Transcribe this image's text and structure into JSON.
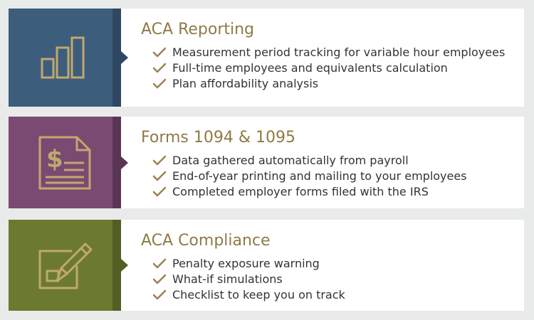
{
  "colors": {
    "background": "#e9eaea",
    "title": "#8f7a45",
    "check": "#9a8551",
    "icon_line": "#c1a86d",
    "text": "#333333"
  },
  "sections": [
    {
      "id": "aca-reporting",
      "icon": "bar-chart-icon",
      "panel_color": "#3d5d7c",
      "strip_color": "#2e4762",
      "title": "ACA Reporting",
      "items": [
        "Measurement period tracking for variable hour employees",
        "Full-time employees and equivalents calculation",
        "Plan affordability analysis"
      ]
    },
    {
      "id": "forms-1094-1095",
      "icon": "dollar-document-icon",
      "panel_color": "#7a4a72",
      "strip_color": "#5b3654",
      "title": "Forms 1094 & 1095",
      "items": [
        "Data gathered automatically from payroll",
        "End-of-year printing and mailing to your employees",
        "Completed employer forms filed with the IRS"
      ]
    },
    {
      "id": "aca-compliance",
      "icon": "pencil-checklist-icon",
      "panel_color": "#6b7a2f",
      "strip_color": "#525e23",
      "title": "ACA Compliance",
      "items": [
        "Penalty exposure warning",
        "What-if simulations",
        "Checklist to keep you on track"
      ]
    }
  ]
}
